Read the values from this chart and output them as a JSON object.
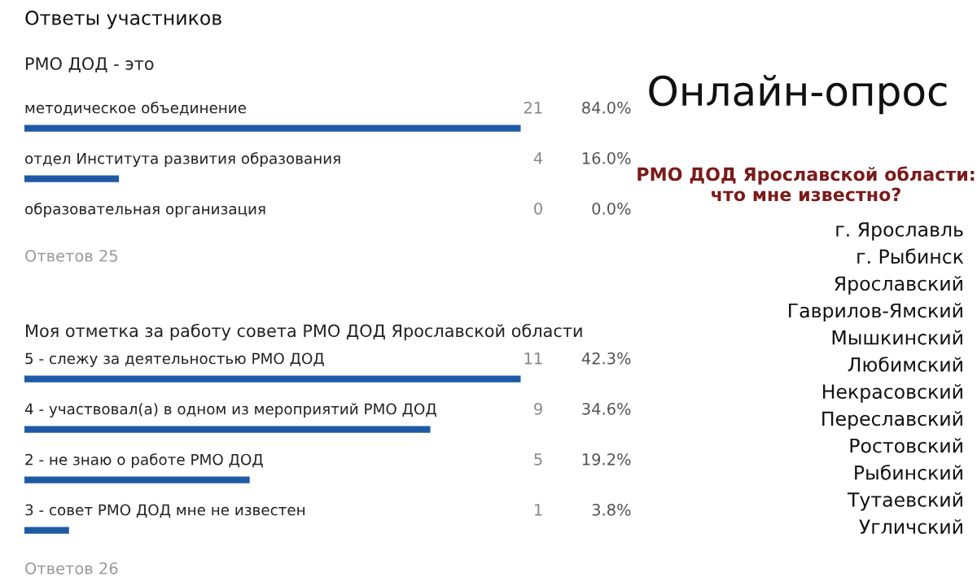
{
  "chart_data": [
    {
      "type": "bar",
      "orientation": "horizontal",
      "title": "Ответы участников",
      "subtitle": "РМО ДОД - это",
      "categories": [
        "методическое объединение",
        "отдел Института развития образования",
        "образовательная организация"
      ],
      "values": [
        84.0,
        16.0,
        0.0
      ],
      "value_labels": [
        "84.0%",
        "16.0%",
        "0.0%"
      ],
      "color": "#1f5aa6",
      "annotations": [
        "21",
        "4",
        "0",
        "Ответов 25"
      ]
    },
    {
      "type": "bar",
      "orientation": "horizontal",
      "subtitle": "Моя отметка за работу совета РМО ДОД Ярославской области",
      "categories": [
        "5 - слежу за деятельностью РМО ДОД",
        "4 - участвовал(а) в одном из мероприятий РМО ДОД",
        "2 - не знаю о работе РМО ДОД",
        "3 - совет РМО ДОД мне не известен"
      ],
      "values": [
        42.3,
        34.6,
        19.2,
        3.8
      ],
      "value_labels": [
        "42.3%",
        "34.6%",
        "19.2%",
        "3.8%"
      ],
      "color": "#1f5aa6",
      "annotations": [
        "11",
        "9",
        "5",
        "1",
        "Ответов 26"
      ]
    },
    {
      "type": "other",
      "title": "Онлайн-опрос",
      "subtitle": "РМО ДОД Ярославской области: что мне известно?",
      "annotations": [
        "г. Ярославль",
        "г. Рыбинск",
        "Ярославский",
        "Гаврилов-Ямский",
        "Мышкинский",
        "Любимский",
        "Некрасовский",
        "Переславский",
        "Ростовский",
        "Рыбинский",
        "Тутаевский",
        "Угличский"
      ]
    }
  ]
}
